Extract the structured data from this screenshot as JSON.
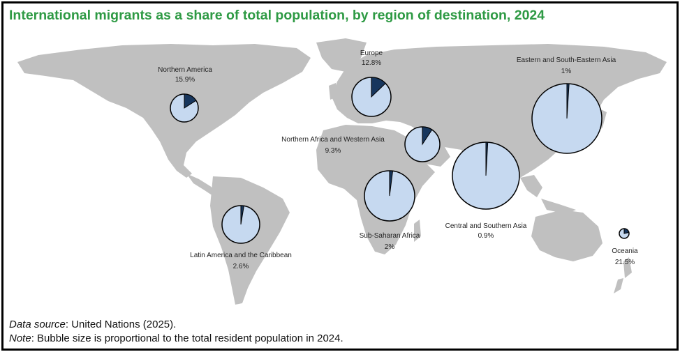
{
  "title": "International migrants as a share of total population, by region of destination, 2024",
  "footer": {
    "source_label": "Data source",
    "source_text": ": United Nations (2025).",
    "note_label": "Note",
    "note_text": ": Bubble size is proportional to the total resident population in 2024."
  },
  "colors": {
    "land": "#c0c0c0",
    "pie_fill": "#c6d9f0",
    "pie_slice": "#17365d",
    "pie_stroke": "#000000",
    "title": "#2e9a44"
  },
  "chart_data": {
    "type": "pie",
    "regions": [
      {
        "name": "Northern America",
        "share": "15.9%",
        "value": 15.9
      },
      {
        "name": "Europe",
        "share": "12.8%",
        "value": 12.8
      },
      {
        "name": "Eastern and South-Eastern Asia",
        "share": "1%",
        "value": 1
      },
      {
        "name": "Northern Africa and Western Asia",
        "share": "9.3%",
        "value": 9.3
      },
      {
        "name": "Central and Southern Asia",
        "share": "0.9%",
        "value": 0.9
      },
      {
        "name": "Sub-Saharan Africa",
        "share": "2%",
        "value": 2
      },
      {
        "name": "Latin America and the Caribbean",
        "share": "2.6%",
        "value": 2.6
      },
      {
        "name": "Oceania",
        "share": "21.5%",
        "value": 21.5
      }
    ]
  }
}
